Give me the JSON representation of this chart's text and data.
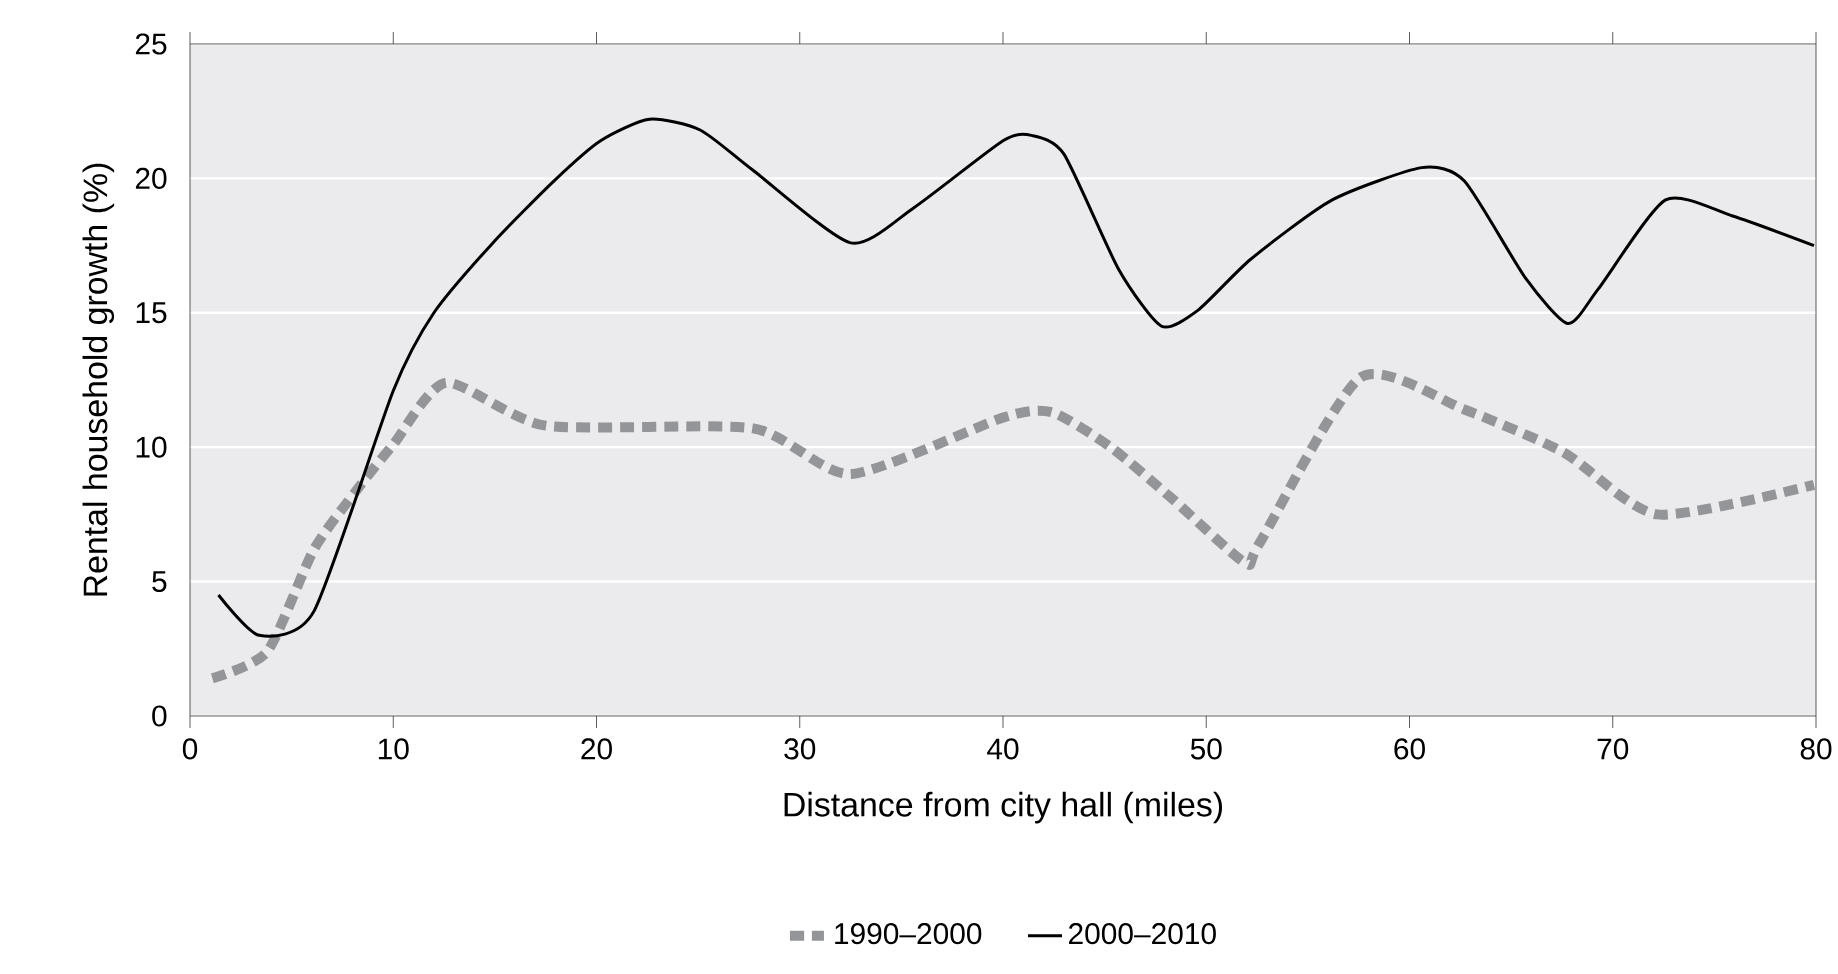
{
  "chart_data": {
    "type": "line",
    "xlabel": "Distance from city hall (miles)",
    "ylabel": "Rental household growth (%)",
    "xlim": [
      0,
      80
    ],
    "ylim": [
      0,
      25
    ],
    "xticks": [
      0,
      10,
      20,
      30,
      40,
      50,
      60,
      70,
      80
    ],
    "yticks": [
      0,
      5,
      10,
      15,
      20,
      25
    ],
    "grid": "y",
    "legend": "bottom",
    "series": [
      {
        "name": "1990–2000",
        "color": "#939598",
        "line_style": "dashed",
        "x": [
          1.1,
          3.8,
          6.1,
          8.4,
          10,
          12.6,
          17.5,
          27.7,
          32.5,
          40,
          42.4,
          45.3,
          48.3,
          51.9,
          52.6,
          57.6,
          62.7,
          67.6,
          72.2,
          79.9
        ],
        "values": [
          1.4,
          2.4,
          6.2,
          8.6,
          10.1,
          12.4,
          10.8,
          10.7,
          9.0,
          11.1,
          11.3,
          10.0,
          8.1,
          5.7,
          6.4,
          12.6,
          11.4,
          9.8,
          7.5,
          8.6
        ]
      },
      {
        "name": "2000–2010",
        "color": "#000000",
        "line_style": "solid",
        "x": [
          1.4,
          3.4,
          6.1,
          10,
          12,
          14.9,
          17.9,
          20.2,
          22.6,
          25.1,
          27.7,
          32.5,
          35.6,
          40,
          41.4,
          43,
          45.7,
          47.8,
          49.6,
          52.2,
          56.2,
          60.6,
          62.7,
          65.7,
          67.8,
          69.3,
          72.6,
          75.9,
          79.9
        ],
        "values": [
          4.5,
          3.0,
          3.9,
          12.1,
          15.0,
          17.6,
          19.9,
          21.4,
          22.2,
          21.8,
          20.3,
          17.6,
          18.9,
          21.4,
          21.6,
          20.9,
          16.6,
          14.5,
          15.1,
          17.0,
          19.2,
          20.4,
          19.9,
          16.3,
          14.6,
          15.9,
          19.2,
          18.6,
          17.5
        ]
      }
    ]
  }
}
